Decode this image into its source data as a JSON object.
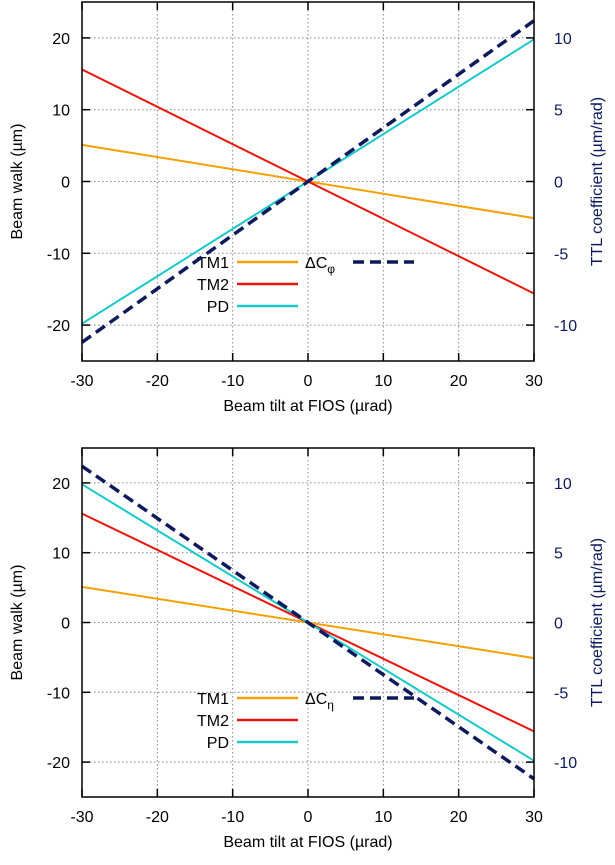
{
  "colors": {
    "TM1": "#f5a000",
    "TM2": "#e8160f",
    "PD": "#19c8c8",
    "delta": "#0e1a5c",
    "axis": "#000000",
    "right_axis": "#0e1a5c",
    "grid": "#888888"
  },
  "chart_data": [
    {
      "type": "line",
      "title": "",
      "xlabel": "Beam tilt at FIOS (µrad)",
      "ylabel": "Beam walk (µm)",
      "y2label": "TTL coefficient (µm/rad)",
      "xlim": [
        -30,
        30
      ],
      "ylim": [
        -25,
        25
      ],
      "y2lim": [
        -12.5,
        12.5
      ],
      "xticks": [
        -30,
        -20,
        -10,
        0,
        10,
        20,
        30
      ],
      "yticks": [
        -20,
        -10,
        0,
        10,
        20
      ],
      "y2ticks": [
        -10,
        -5,
        0,
        5,
        10
      ],
      "grid": true,
      "legend_position": "bottom-left",
      "series": [
        {
          "name": "TM1",
          "axis": "left",
          "style": "solid",
          "color_key": "TM1",
          "x": [
            -30,
            30
          ],
          "y": [
            5.1,
            -5.1
          ]
        },
        {
          "name": "TM2",
          "axis": "left",
          "style": "solid",
          "color_key": "TM2",
          "x": [
            -30,
            30
          ],
          "y": [
            15.6,
            -15.6
          ]
        },
        {
          "name": "PD",
          "axis": "left",
          "style": "solid",
          "color_key": "PD",
          "x": [
            -30,
            30
          ],
          "y": [
            -19.8,
            19.8
          ]
        },
        {
          "name": "ΔC",
          "sub": "φ",
          "axis": "right",
          "style": "dashed",
          "color_key": "delta",
          "x": [
            -30,
            30
          ],
          "y": [
            -11.2,
            11.2
          ]
        }
      ]
    },
    {
      "type": "line",
      "title": "",
      "xlabel": "Beam tilt at FIOS (µrad)",
      "ylabel": "Beam walk (µm)",
      "y2label": "TTL coefficient (µm/rad)",
      "xlim": [
        -30,
        30
      ],
      "ylim": [
        -25,
        25
      ],
      "y2lim": [
        -12.5,
        12.5
      ],
      "xticks": [
        -30,
        -20,
        -10,
        0,
        10,
        20,
        30
      ],
      "yticks": [
        -20,
        -10,
        0,
        10,
        20
      ],
      "y2ticks": [
        -10,
        -5,
        0,
        5,
        10
      ],
      "grid": true,
      "legend_position": "bottom-left",
      "series": [
        {
          "name": "TM1",
          "axis": "left",
          "style": "solid",
          "color_key": "TM1",
          "x": [
            -30,
            30
          ],
          "y": [
            5.1,
            -5.1
          ]
        },
        {
          "name": "TM2",
          "axis": "left",
          "style": "solid",
          "color_key": "TM2",
          "x": [
            -30,
            30
          ],
          "y": [
            15.6,
            -15.6
          ]
        },
        {
          "name": "PD",
          "axis": "left",
          "style": "solid",
          "color_key": "PD",
          "x": [
            -30,
            30
          ],
          "y": [
            19.8,
            -19.8
          ]
        },
        {
          "name": "ΔC",
          "sub": "η",
          "axis": "right",
          "style": "dashed",
          "color_key": "delta",
          "x": [
            -30,
            30
          ],
          "y": [
            11.2,
            -11.2
          ]
        }
      ]
    }
  ]
}
